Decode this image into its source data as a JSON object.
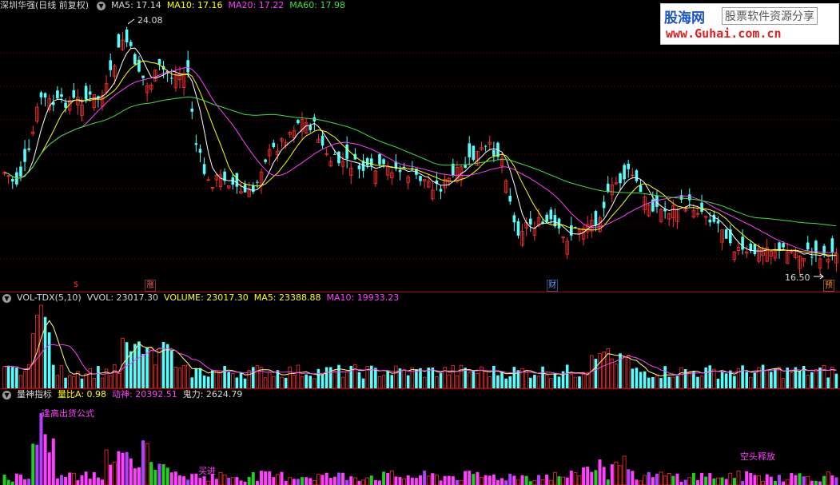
{
  "colors": {
    "up": "#ff3030",
    "down": "#54ffff",
    "ma5": "#ffffff",
    "ma10": "#ffff00",
    "ma20": "#ff40ff",
    "ma60": "#40e040",
    "grid": "#6e0000",
    "sep": "#b00000",
    "pink": "#ff40ff",
    "green": "#20d020"
  },
  "kline": {
    "title": "深圳华强(日线 前复权)",
    "toggle_icon": "chevron-down-icon",
    "ma5": "MA5: 17.14",
    "ma10": "MA10: 17.16",
    "ma20": "MA20: 17.22",
    "ma60": "MA60: 17.98",
    "high_label": "24.08",
    "low_label": "16.50",
    "events": [
      {
        "text": "$",
        "color": "#ff3030"
      },
      {
        "text": "涨",
        "color": "#ff6060"
      },
      {
        "text": "财",
        "color": "#60a0ff"
      },
      {
        "text": "预",
        "color": "#ff9020"
      }
    ]
  },
  "vol": {
    "name": "VOL-TDX(5,10)",
    "vvol": "VVOL: 23017.30",
    "volume": "VOLUME: 23017.30",
    "ma5": "MA5: 23388.88",
    "ma10": "MA10: 19933.23"
  },
  "ind": {
    "name": "量神指标",
    "lbA": "量比A: 0.98",
    "ds": "动神: 20392.51",
    "gl": "鬼力: 2624.79",
    "ann_top": "逢高出货公式",
    "ann_buy": "买进",
    "ann_right": "空头释放"
  },
  "watermark": {
    "brand": "股海网",
    "tagline": "股票软件资源分享",
    "url": "www.Guhai.com.cn"
  }
}
